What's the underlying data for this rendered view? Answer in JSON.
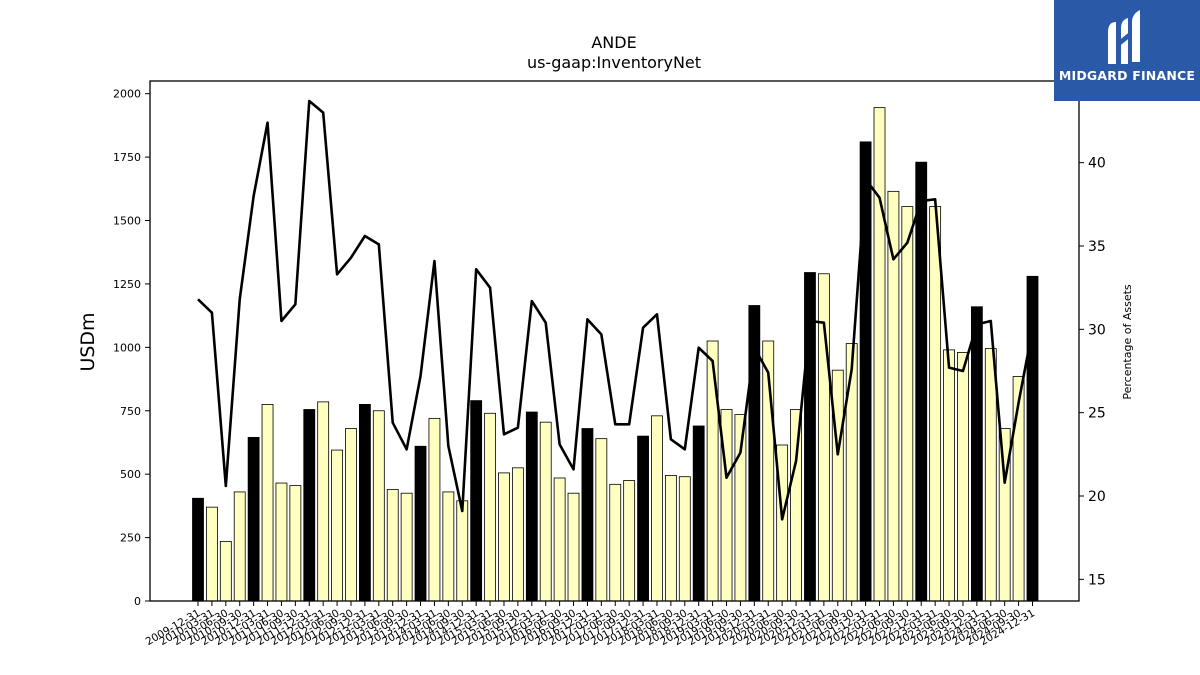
{
  "chart_data": {
    "type": "bar",
    "title": "ANDE",
    "subtitle": "us-gaap:InventoryNet",
    "ylabel": "USDm",
    "ylabel_right": "Percentage of Assets",
    "ylim": [
      0,
      2050
    ],
    "ylim_right": [
      13.7,
      44.9
    ],
    "yticks": [
      0,
      250,
      500,
      750,
      1000,
      1250,
      1500,
      1750,
      2000
    ],
    "yticks_right": [
      15,
      20,
      25,
      30,
      35,
      40
    ],
    "grid": false,
    "colors": {
      "annual_bar": "#000000",
      "quarter_bar": "#ffffc0",
      "line": "#000000"
    },
    "categories": [
      "2009-12-31",
      "2010-03-31",
      "2010-06-30",
      "2010-09-30",
      "2010-12-31",
      "2011-03-31",
      "2011-06-30",
      "2011-09-30",
      "2011-12-31",
      "2012-03-31",
      "2012-06-30",
      "2012-09-30",
      "2012-12-31",
      "2013-03-31",
      "2013-06-30",
      "2013-09-30",
      "2013-12-31",
      "2014-03-31",
      "2014-06-30",
      "2014-09-30",
      "2014-12-31",
      "2015-03-31",
      "2015-06-30",
      "2015-09-30",
      "2015-12-31",
      "2016-03-31",
      "2016-06-30",
      "2016-09-30",
      "2016-12-31",
      "2017-03-31",
      "2017-06-30",
      "2017-09-30",
      "2017-12-31",
      "2018-03-31",
      "2018-06-30",
      "2018-09-30",
      "2018-12-31",
      "2019-03-31",
      "2019-06-30",
      "2019-09-30",
      "2019-12-31",
      "2020-03-31",
      "2020-06-30",
      "2020-09-30",
      "2020-12-31",
      "2021-03-31",
      "2021-06-30",
      "2021-09-30",
      "2021-12-31",
      "2022-03-31",
      "2022-06-30",
      "2022-09-30",
      "2022-12-31",
      "2023-03-31",
      "2023-06-30",
      "2023-09-30",
      "2023-12-31",
      "2024-03-31",
      "2024-06-30",
      "2024-09-30",
      "2024-12-31"
    ],
    "series": [
      {
        "type": "bar",
        "values": [
          405,
          370,
          235,
          430,
          645,
          775,
          465,
          455,
          755,
          785,
          595,
          680,
          775,
          750,
          440,
          425,
          610,
          720,
          430,
          395,
          790,
          740,
          505,
          525,
          745,
          705,
          485,
          425,
          680,
          640,
          460,
          475,
          650,
          730,
          495,
          490,
          690,
          1025,
          755,
          735,
          1165,
          1025,
          615,
          755,
          1295,
          1290,
          910,
          1015,
          1810,
          1945,
          1615,
          1555,
          1730,
          1555,
          990,
          980,
          1160,
          995,
          680,
          885,
          1280
        ]
      },
      {
        "type": "line",
        "axis": "right",
        "values": [
          31.8,
          31.0,
          20.6,
          31.8,
          38.0,
          42.4,
          30.5,
          31.5,
          43.7,
          43.0,
          33.3,
          34.3,
          35.6,
          35.1,
          24.4,
          22.8,
          27.2,
          34.1,
          23.0,
          19.1,
          33.6,
          32.5,
          23.7,
          24.1,
          31.7,
          30.4,
          23.1,
          21.6,
          30.6,
          29.7,
          24.3,
          24.3,
          30.1,
          30.9,
          23.4,
          22.8,
          28.9,
          28.1,
          21.1,
          22.6,
          28.9,
          27.4,
          18.6,
          22.1,
          30.5,
          30.4,
          22.5,
          27.6,
          39.0,
          37.9,
          34.2,
          35.2,
          37.7,
          37.8,
          27.7,
          27.5,
          30.3,
          30.5,
          20.8,
          25.6,
          30.0
        ]
      }
    ]
  },
  "logo": {
    "text": "MIDGARD FINANCE"
  }
}
